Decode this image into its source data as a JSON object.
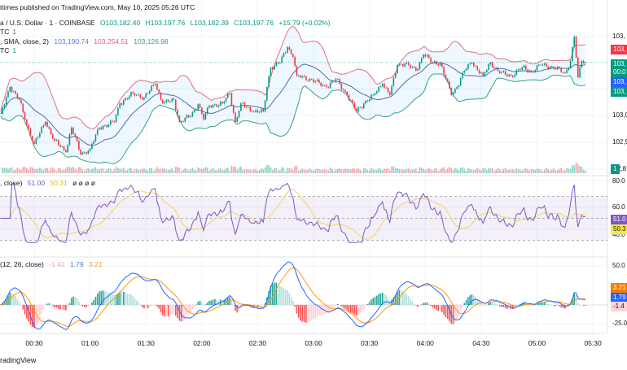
{
  "header": {
    "published": "itimes published on TradingView.com, May 10, 2025 05:26 UTC",
    "symbol": "a / U.S. Dollar · 1 · COINBASE",
    "open": "O103,182.40",
    "high": "H103,197.76",
    "low": "L103,182.39",
    "close": "C103,197.76",
    "change": "+15.79 (+0.02%)",
    "vol_line": "TC",
    "vol_value": "1",
    "bb_label": ", SMA, close, 2)",
    "bb_basis": "103,190.74",
    "bb_upper": "103,254.51",
    "bb_lower": "103,126.98",
    "vol_line2": "TC",
    "vol_value2": "1"
  },
  "rsi_header": {
    "label": ", close)",
    "rsi": "51.00",
    "ma": "50.31",
    "extra": "ø  ø  ø  ø"
  },
  "macd_header": {
    "label": "(12, 26, close)",
    "hist": "-1.42",
    "macd": "1.79",
    "signal": "3.21"
  },
  "footer": {
    "brand": "radingView"
  },
  "price_axis": {
    "labels": [
      "103,",
      "103,0",
      "102,9",
      "2,8"
    ],
    "tags": {
      "upper": "103,",
      "current": "103,",
      "countdown": "00:0",
      "basis": "103,",
      "lower": "103,",
      "volume": "1"
    }
  },
  "rsi_axis": {
    "labels": [
      "80.0",
      "60.0",
      "40.0"
    ],
    "rsi_tag": "51.0",
    "ma_tag": "50.3"
  },
  "macd_axis": {
    "labels": [
      "50.0",
      "-25.0"
    ],
    "signal_tag": "3.21",
    "macd_tag": "1.79",
    "hist_tag": "-1.4"
  },
  "time_axis": [
    "00:30",
    "01:00",
    "01:30",
    "02:00",
    "02:30",
    "03:00",
    "03:30",
    "04:00",
    "04:30",
    "05:00",
    "05:30"
  ],
  "colors": {
    "up": "#089981",
    "down": "#f23645",
    "bb_upper": "#e0707e",
    "bb_lower": "#3a9e8e",
    "bb_basis": "#4a6ab0",
    "rsi": "#7e57c2",
    "rsi_ma": "#f5d76e",
    "macd": "#2962ff",
    "signal": "#ff9800"
  },
  "chart_data": {
    "type": "candlestick",
    "interval": "1 minute",
    "exchange": "COINBASE",
    "indicators": [
      "Bollinger Bands (SMA, close, 2)",
      "Volume",
      "RSI",
      "MACD (12, 26, close)"
    ],
    "ylim_price": [
      102800,
      103330
    ],
    "rsi_ylim": [
      30,
      80
    ],
    "macd_ylim": [
      -25,
      50
    ],
    "grid": true,
    "close_points": [
      {
        "t": "00:12",
        "c": 103006
      },
      {
        "t": "00:17",
        "c": 103106
      },
      {
        "t": "00:22",
        "c": 103058
      },
      {
        "t": "00:25",
        "c": 102985
      },
      {
        "t": "00:30",
        "c": 102894
      },
      {
        "t": "00:36",
        "c": 102976
      },
      {
        "t": "00:41",
        "c": 102906
      },
      {
        "t": "00:47",
        "c": 102864
      },
      {
        "t": "00:50",
        "c": 102955
      },
      {
        "t": "00:55",
        "c": 102855
      },
      {
        "t": "01:00",
        "c": 102876
      },
      {
        "t": "01:05",
        "c": 102955
      },
      {
        "t": "01:13",
        "c": 102976
      },
      {
        "t": "01:16",
        "c": 103045
      },
      {
        "t": "01:23",
        "c": 103082
      },
      {
        "t": "01:29",
        "c": 103067
      },
      {
        "t": "01:35",
        "c": 103118
      },
      {
        "t": "01:39",
        "c": 103045
      },
      {
        "t": "01:45",
        "c": 103058
      },
      {
        "t": "01:48",
        "c": 102976
      },
      {
        "t": "01:54",
        "c": 102997
      },
      {
        "t": "01:58",
        "c": 103042
      },
      {
        "t": "02:01",
        "c": 102985
      },
      {
        "t": "02:04",
        "c": 103036
      },
      {
        "t": "02:11",
        "c": 103045
      },
      {
        "t": "02:15",
        "c": 103082
      },
      {
        "t": "02:18",
        "c": 102976
      },
      {
        "t": "02:21",
        "c": 103045
      },
      {
        "t": "02:27",
        "c": 103015
      },
      {
        "t": "02:33",
        "c": 103015
      },
      {
        "t": "02:35",
        "c": 103106
      },
      {
        "t": "02:37",
        "c": 103179
      },
      {
        "t": "02:42",
        "c": 103197
      },
      {
        "t": "02:46",
        "c": 103255
      },
      {
        "t": "02:49",
        "c": 103218
      },
      {
        "t": "02:51",
        "c": 103148
      },
      {
        "t": "02:58",
        "c": 103136
      },
      {
        "t": "03:07",
        "c": 103106
      },
      {
        "t": "03:12",
        "c": 103136
      },
      {
        "t": "03:18",
        "c": 103076
      },
      {
        "t": "03:23",
        "c": 103015
      },
      {
        "t": "03:27",
        "c": 103045
      },
      {
        "t": "03:32",
        "c": 103076
      },
      {
        "t": "03:37",
        "c": 103118
      },
      {
        "t": "03:41",
        "c": 103076
      },
      {
        "t": "03:45",
        "c": 103188
      },
      {
        "t": "03:49",
        "c": 103194
      },
      {
        "t": "03:55",
        "c": 103167
      },
      {
        "t": "03:59",
        "c": 103227
      },
      {
        "t": "04:04",
        "c": 103197
      },
      {
        "t": "04:08",
        "c": 103197
      },
      {
        "t": "04:11",
        "c": 103136
      },
      {
        "t": "04:14",
        "c": 103076
      },
      {
        "t": "04:17",
        "c": 103106
      },
      {
        "t": "04:21",
        "c": 103167
      },
      {
        "t": "04:25",
        "c": 103197
      },
      {
        "t": "04:31",
        "c": 103148
      },
      {
        "t": "04:35",
        "c": 103197
      },
      {
        "t": "04:40",
        "c": 103158
      },
      {
        "t": "04:46",
        "c": 103148
      },
      {
        "t": "04:52",
        "c": 103179
      },
      {
        "t": "04:57",
        "c": 103164
      },
      {
        "t": "05:02",
        "c": 103188
      },
      {
        "t": "05:08",
        "c": 103182
      },
      {
        "t": "05:15",
        "c": 103158
      },
      {
        "t": "05:18",
        "c": 103203
      },
      {
        "t": "05:20",
        "c": 103294
      },
      {
        "t": "05:22",
        "c": 103142
      },
      {
        "t": "05:24",
        "c": 103203
      },
      {
        "t": "05:26",
        "c": 103197.76
      }
    ],
    "last": {
      "open": 103182.4,
      "high": 103197.76,
      "low": 103182.39,
      "close": 103197.76
    },
    "bollinger": {
      "basis": 103190.74,
      "upper": 103254.51,
      "lower": 103126.98
    },
    "rsi": {
      "value": 51.0,
      "ma": 50.31
    },
    "macd": {
      "histogram": -1.42,
      "macd": 1.79,
      "signal": 3.21
    }
  }
}
